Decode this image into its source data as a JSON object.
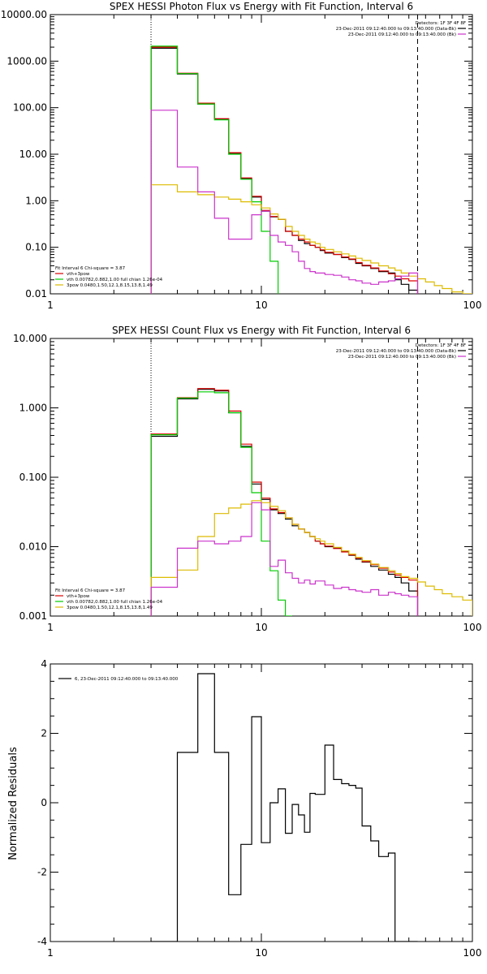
{
  "chart_data": [
    {
      "type": "line",
      "title": "SPEX HESSI Photon Flux vs Energy with Fit Function, Interval 6",
      "xscale": "log",
      "yscale": "log",
      "xlim": [
        1,
        100
      ],
      "ylim": [
        0.01,
        10000
      ],
      "xticks": [
        "1",
        "10",
        "100"
      ],
      "yticks": [
        "0.01",
        "0.10",
        "1.00",
        "10.00",
        "100.00",
        "1000.00",
        "10000.00"
      ],
      "vlines": [
        {
          "x": 3,
          "style": "dotted"
        },
        {
          "x": 55,
          "style": "dashed"
        }
      ],
      "legend_topright": {
        "header": "Detectors: 1F 3F 4F 8F",
        "entries": [
          {
            "text": "23-Dec-2011 09:12:40.000 to 09:13:40.000 (Data-Bk)",
            "color": "#000000"
          },
          {
            "text": "23-Dec-2011 09:12:40.000 to 09:13:40.000 (Bk)",
            "color": "#cc33cc"
          }
        ]
      },
      "legend_bottomleft": {
        "header": "Fit Interval 6   Chi-square = 3.87",
        "entries": [
          {
            "text": "vth+3pow",
            "color": "#dd0000"
          },
          {
            "text": "vth 0.00782,0.882,1.00   full chian 1.26e-04",
            "color": "#00cc00"
          },
          {
            "text": "3pow 0.0480,1.50,12.1,8.15,13.8,1.49",
            "color": "#ddbb00"
          }
        ]
      },
      "series": [
        {
          "color": "#000000",
          "edges": [
            3,
            4,
            5,
            6,
            7,
            8,
            9,
            10,
            11,
            12,
            13,
            14,
            15,
            16,
            17,
            18,
            19,
            20,
            22,
            24,
            26,
            28,
            30,
            33,
            36,
            40,
            43,
            46,
            50,
            55
          ],
          "values": [
            1900,
            530,
            120,
            57,
            10.5,
            3.0,
            1.2,
            0.6,
            0.45,
            0.4,
            0.22,
            0.18,
            0.14,
            0.12,
            0.11,
            0.1,
            0.085,
            0.075,
            0.07,
            0.06,
            0.055,
            0.045,
            0.04,
            0.035,
            0.03,
            0.028,
            0.02,
            0.016,
            0.012
          ]
        },
        {
          "color": "#dd0000",
          "edges": [
            3,
            4,
            5,
            6,
            7,
            8,
            9,
            10,
            11,
            12,
            13,
            14,
            15,
            16,
            17,
            18,
            19,
            20,
            22,
            24,
            26,
            28,
            30,
            33,
            36,
            40,
            43,
            46,
            50,
            55
          ],
          "values": [
            2000,
            550,
            125,
            58,
            10.8,
            3.1,
            1.25,
            0.62,
            0.46,
            0.4,
            0.22,
            0.18,
            0.15,
            0.13,
            0.11,
            0.1,
            0.088,
            0.078,
            0.07,
            0.062,
            0.056,
            0.047,
            0.041,
            0.036,
            0.031,
            0.027,
            0.024,
            0.021,
            0.019
          ]
        },
        {
          "color": "#00cc00",
          "edges": [
            3,
            4,
            5,
            6,
            7,
            8,
            9,
            10,
            11,
            12
          ],
          "values": [
            2100,
            540,
            120,
            55,
            10.0,
            2.9,
            0.95,
            0.22,
            0.05
          ]
        },
        {
          "color": "#ddbb00",
          "edges": [
            3,
            4,
            5,
            6,
            7,
            8,
            9,
            10,
            11,
            12,
            13,
            14,
            15,
            16,
            17,
            18,
            19,
            20,
            22,
            24,
            26,
            28,
            30,
            33,
            36,
            40,
            43,
            46,
            50,
            55,
            60,
            66,
            72,
            80,
            90,
            100
          ],
          "values": [
            2.2,
            1.55,
            1.35,
            1.2,
            1.08,
            0.95,
            0.82,
            0.7,
            0.52,
            0.4,
            0.28,
            0.22,
            0.18,
            0.15,
            0.13,
            0.12,
            0.1,
            0.09,
            0.08,
            0.072,
            0.065,
            0.058,
            0.052,
            0.046,
            0.04,
            0.036,
            0.032,
            0.028,
            0.024,
            0.021,
            0.018,
            0.015,
            0.013,
            0.011,
            0.0095
          ]
        },
        {
          "color": "#cc33cc",
          "edges": [
            3,
            4,
            5,
            6,
            7,
            8,
            9,
            10,
            11,
            12,
            13,
            14,
            15,
            16,
            17,
            18,
            20,
            22,
            24,
            26,
            28,
            30,
            33,
            36,
            40,
            43,
            46,
            50,
            55
          ],
          "values": [
            88,
            5.3,
            1.55,
            0.42,
            0.15,
            0.15,
            0.5,
            0.6,
            0.18,
            0.13,
            0.11,
            0.08,
            0.05,
            0.035,
            0.03,
            0.028,
            0.026,
            0.025,
            0.023,
            0.02,
            0.019,
            0.017,
            0.016,
            0.018,
            0.019,
            0.021,
            0.024,
            0.028
          ]
        }
      ]
    },
    {
      "type": "line",
      "title": "SPEX HESSI Count Flux vs Energy with Fit Function, Interval 6",
      "xscale": "log",
      "yscale": "log",
      "xlim": [
        1,
        100
      ],
      "ylim": [
        0.001,
        10
      ],
      "xticks": [
        "1",
        "10",
        "100"
      ],
      "yticks": [
        "0.001",
        "0.010",
        "0.100",
        "1.000",
        "10.000"
      ],
      "vlines": [
        {
          "x": 3,
          "style": "dotted"
        },
        {
          "x": 55,
          "style": "dashed"
        }
      ],
      "legend_topright": {
        "header": "Detectors: 1F 3F 4F 8F",
        "entries": [
          {
            "text": "23-Dec-2011 09:12:40.000 to 09:13:40.000 (Data-Bk)",
            "color": "#000000"
          },
          {
            "text": "23-Dec-2011 09:12:40.000 to 09:13:40.000 (Bk)",
            "color": "#cc33cc"
          }
        ]
      },
      "legend_bottomleft": {
        "header": "Fit Interval 6   Chi-square = 3.87",
        "entries": [
          {
            "text": "vth+3pow",
            "color": "#dd0000"
          },
          {
            "text": "vth 0.00782,0.882,1.00   full chian 1.26e-04",
            "color": "#00cc00"
          },
          {
            "text": "3pow 0.0480,1.50,12.1,8.15,13.8,1.49",
            "color": "#ddbb00"
          }
        ]
      },
      "series": [
        {
          "color": "#000000",
          "edges": [
            3,
            4,
            5,
            6,
            7,
            8,
            9,
            10,
            11,
            12,
            13,
            14,
            15,
            16,
            17,
            18,
            19,
            20,
            22,
            24,
            26,
            28,
            30,
            33,
            36,
            40,
            43,
            46,
            50,
            55
          ],
          "values": [
            0.39,
            1.35,
            1.85,
            1.75,
            0.85,
            0.28,
            0.08,
            0.048,
            0.034,
            0.03,
            0.025,
            0.02,
            0.018,
            0.016,
            0.014,
            0.012,
            0.011,
            0.01,
            0.0095,
            0.0085,
            0.0075,
            0.0066,
            0.006,
            0.0052,
            0.0046,
            0.004,
            0.0036,
            0.003,
            0.0023
          ]
        },
        {
          "color": "#dd0000",
          "edges": [
            3,
            4,
            5,
            6,
            7,
            8,
            9,
            10,
            11,
            12,
            13,
            14,
            15,
            16,
            17,
            18,
            19,
            20,
            22,
            24,
            26,
            28,
            30,
            33,
            36,
            40,
            43,
            46,
            50,
            55
          ],
          "values": [
            0.42,
            1.4,
            1.9,
            1.8,
            0.9,
            0.3,
            0.085,
            0.05,
            0.035,
            0.031,
            0.026,
            0.021,
            0.018,
            0.016,
            0.014,
            0.012,
            0.011,
            0.0102,
            0.0094,
            0.0084,
            0.0076,
            0.0068,
            0.0061,
            0.0055,
            0.0049,
            0.0043,
            0.0039,
            0.0036,
            0.0033
          ]
        },
        {
          "color": "#00cc00",
          "edges": [
            3,
            4,
            5,
            6,
            7,
            8,
            9,
            10,
            11,
            12,
            13,
            14
          ],
          "values": [
            0.41,
            1.38,
            1.7,
            1.65,
            0.85,
            0.27,
            0.06,
            0.012,
            0.0045,
            0.0017,
            0.0008
          ]
        },
        {
          "color": "#ddbb00",
          "edges": [
            3,
            4,
            5,
            6,
            7,
            8,
            9,
            10,
            11,
            12,
            13,
            14,
            15,
            16,
            17,
            18,
            19,
            20,
            22,
            24,
            26,
            28,
            30,
            33,
            36,
            40,
            43,
            46,
            50,
            55,
            60,
            66,
            72,
            80,
            90,
            100
          ],
          "values": [
            0.0036,
            0.0046,
            0.014,
            0.03,
            0.036,
            0.041,
            0.046,
            0.043,
            0.038,
            0.033,
            0.026,
            0.021,
            0.018,
            0.016,
            0.014,
            0.013,
            0.012,
            0.011,
            0.0098,
            0.0087,
            0.0078,
            0.007,
            0.0063,
            0.0056,
            0.005,
            0.0045,
            0.0041,
            0.0037,
            0.0035,
            0.0031,
            0.0027,
            0.0024,
            0.0021,
            0.0019,
            0.0017
          ]
        },
        {
          "color": "#cc33cc",
          "edges": [
            3,
            4,
            5,
            6,
            7,
            8,
            9,
            10,
            11,
            12,
            13,
            14,
            15,
            16,
            17,
            18,
            20,
            22,
            24,
            26,
            28,
            30,
            33,
            36,
            40,
            43,
            46,
            50,
            55
          ],
          "values": [
            0.0026,
            0.0095,
            0.012,
            0.011,
            0.012,
            0.014,
            0.043,
            0.034,
            0.0052,
            0.0064,
            0.0042,
            0.0035,
            0.003,
            0.0033,
            0.0029,
            0.0032,
            0.0028,
            0.0025,
            0.0026,
            0.0024,
            0.0023,
            0.0022,
            0.0024,
            0.002,
            0.0022,
            0.0021,
            0.002,
            0.0019
          ]
        }
      ]
    },
    {
      "type": "line",
      "ylabel": "Normalized Residuals",
      "xscale": "log",
      "xlim": [
        1,
        100
      ],
      "ylim": [
        -4,
        4
      ],
      "xticks": [
        "1",
        "10",
        "100"
      ],
      "yticks": [
        "-4",
        "-2",
        "0",
        "2",
        "4"
      ],
      "legend": {
        "text": "6, 23-Dec-2011 09:12:40.000 to 09:13:40.000",
        "color": "#000000"
      },
      "series": [
        {
          "color": "#000000",
          "edges": [
            3,
            4,
            5,
            6,
            7,
            8,
            9,
            10,
            11,
            12,
            13,
            14,
            15,
            16,
            17,
            18,
            20,
            22,
            24,
            26,
            28,
            30,
            33,
            36,
            40,
            43,
            46,
            50,
            55
          ],
          "values": [
            -4.0,
            1.45,
            3.72,
            1.45,
            -2.65,
            -1.2,
            2.48,
            -1.15,
            0.0,
            0.4,
            -0.88,
            -0.05,
            -0.35,
            -0.85,
            0.27,
            0.24,
            1.66,
            0.67,
            0.55,
            0.5,
            0.42,
            -0.67,
            -1.1,
            -1.55,
            -1.45,
            -4.0,
            -4.0,
            -4.0
          ]
        }
      ]
    }
  ]
}
